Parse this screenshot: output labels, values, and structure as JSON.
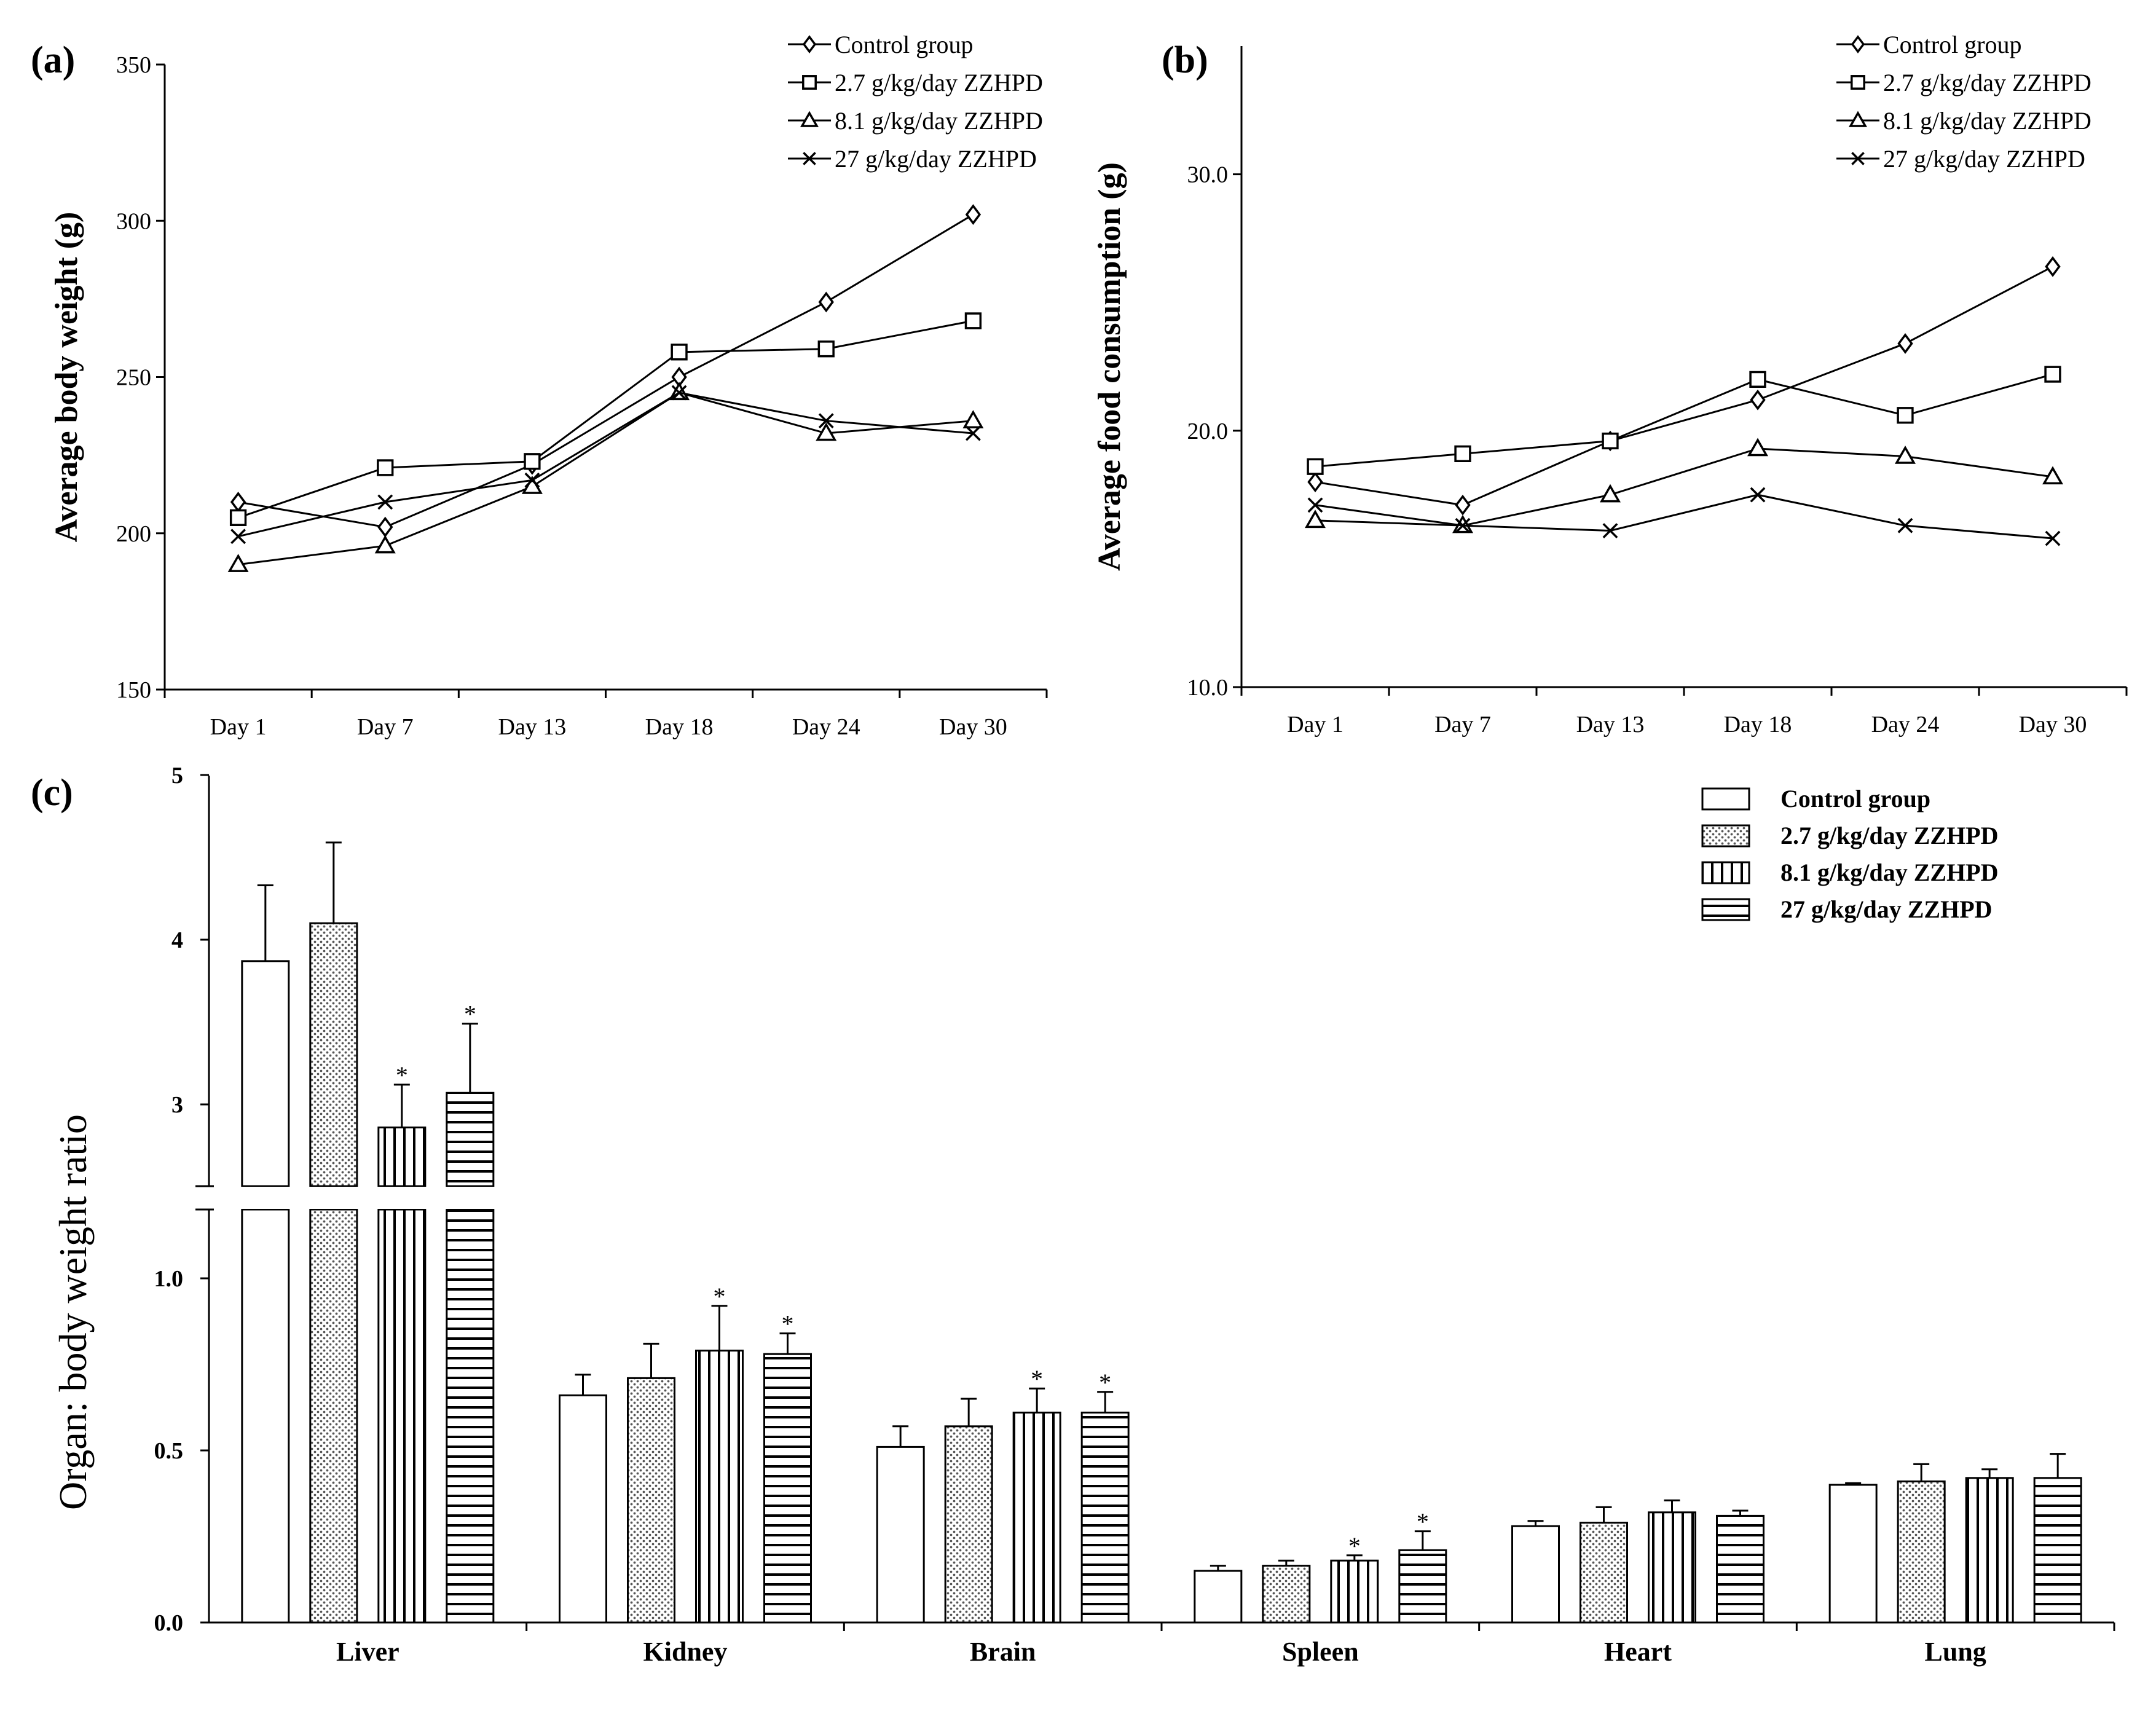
{
  "panels": {
    "a": {
      "label": "(a)"
    },
    "b": {
      "label": "(b)"
    },
    "c": {
      "label": "(c)"
    }
  },
  "chart_data": [
    {
      "id": "a",
      "type": "line",
      "title": "",
      "xlabel": "",
      "ylabel": "Average body weight (g)",
      "categories": [
        "Day 1",
        "Day 7",
        "Day 13",
        "Day 18",
        "Day 24",
        "Day 30"
      ],
      "ylim": [
        150,
        350
      ],
      "yticks": [
        150,
        200,
        250,
        300,
        350
      ],
      "legend_position": "top-right",
      "series": [
        {
          "name": "Control group",
          "marker": "diamond",
          "values": [
            210,
            202,
            222,
            250,
            274,
            302
          ]
        },
        {
          "name": "2.7 g/kg/day ZZHPD",
          "marker": "square",
          "values": [
            205,
            221,
            223,
            258,
            259,
            268
          ]
        },
        {
          "name": "8.1 g/kg/day ZZHPD",
          "marker": "triangle",
          "values": [
            190,
            196,
            215,
            245,
            232,
            236
          ]
        },
        {
          "name": "27 g/kg/day  ZZHPD",
          "marker": "x",
          "values": [
            199,
            210,
            217,
            245,
            236,
            232
          ]
        }
      ]
    },
    {
      "id": "b",
      "type": "line",
      "title": "",
      "xlabel": "",
      "ylabel": "Average food consumption (g)",
      "categories": [
        "Day 1",
        "Day 7",
        "Day 13",
        "Day 18",
        "Day 24",
        "Day 30"
      ],
      "ylim": [
        10,
        35
      ],
      "yticks": [
        10,
        20,
        30
      ],
      "ytick_labels": [
        "10.0",
        "20.0",
        "30.0"
      ],
      "legend_position": "top-right",
      "series": [
        {
          "name": "Control group",
          "marker": "diamond",
          "values": [
            18.0,
            17.1,
            19.6,
            21.2,
            23.4,
            26.4
          ]
        },
        {
          "name": "2.7 g/kg/day ZZHPD",
          "marker": "square",
          "values": [
            18.6,
            19.1,
            19.6,
            22.0,
            20.6,
            22.2
          ]
        },
        {
          "name": "8.1 g/kg/day ZZHPD",
          "marker": "triangle",
          "values": [
            16.5,
            16.3,
            17.5,
            19.3,
            19.0,
            18.2
          ]
        },
        {
          "name": "27 g/kg/day  ZZHPD",
          "marker": "x",
          "values": [
            17.1,
            16.3,
            16.1,
            17.5,
            16.3,
            15.8
          ]
        }
      ]
    },
    {
      "id": "c",
      "type": "bar",
      "title": "",
      "xlabel": "",
      "ylabel": "Organ: body weight ratio",
      "categories": [
        "Liver",
        "Kidney",
        "Brain",
        "Spleen",
        "Heart",
        "Lung"
      ],
      "axis_break": {
        "lower_range": [
          0,
          1.25
        ],
        "upper_range": [
          2.5,
          5
        ]
      },
      "yticks_lower": [
        0,
        0.5,
        1.0
      ],
      "ytick_labels_lower": [
        "0.0",
        "0.5",
        "1.0"
      ],
      "yticks_upper": [
        3,
        4,
        5
      ],
      "ytick_labels_upper": [
        "3",
        "4",
        "5"
      ],
      "legend_position": "top-right",
      "series": [
        {
          "name": "Control group",
          "pattern": "none",
          "values": [
            3.87,
            0.66,
            0.51,
            0.15,
            0.28,
            0.4
          ],
          "errors": [
            0.46,
            0.06,
            0.06,
            0.015,
            0.015,
            0.005
          ],
          "significant": [
            false,
            false,
            false,
            false,
            false,
            false
          ]
        },
        {
          "name": "2.7 g/kg/day ZZHPD",
          "pattern": "dots",
          "values": [
            4.1,
            0.71,
            0.57,
            0.165,
            0.29,
            0.41
          ],
          "errors": [
            0.49,
            0.1,
            0.08,
            0.015,
            0.045,
            0.05
          ],
          "significant": [
            false,
            false,
            false,
            false,
            false,
            false
          ]
        },
        {
          "name": "8.1 g/kg/day ZZHPD",
          "pattern": "vertical",
          "values": [
            2.86,
            0.79,
            0.61,
            0.18,
            0.32,
            0.42
          ],
          "errors": [
            0.26,
            0.13,
            0.07,
            0.015,
            0.035,
            0.025
          ],
          "significant": [
            true,
            true,
            true,
            true,
            false,
            false
          ]
        },
        {
          "name": "27 g/kg/day ZZHPD",
          "pattern": "horizontal",
          "values": [
            3.07,
            0.78,
            0.61,
            0.21,
            0.31,
            0.42
          ],
          "errors": [
            0.42,
            0.06,
            0.06,
            0.055,
            0.015,
            0.07
          ],
          "significant": [
            true,
            true,
            true,
            true,
            false,
            false
          ]
        }
      ],
      "significance_mark": "*"
    }
  ]
}
